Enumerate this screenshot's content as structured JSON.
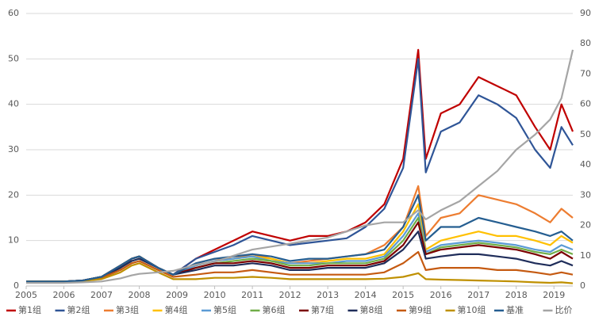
{
  "chart_data": {
    "type": "line",
    "x": [
      2005,
      2006,
      2006.5,
      2007,
      2007.5,
      2007.8,
      2008,
      2008.5,
      2008.9,
      2009.5,
      2010,
      2010.5,
      2011,
      2011.5,
      2012,
      2012.5,
      2013,
      2013.5,
      2014,
      2014.5,
      2015,
      2015.4,
      2015.6,
      2016,
      2016.5,
      2017,
      2017.5,
      2018,
      2018.5,
      2018.9,
      2019.2,
      2019.5
    ],
    "xlim": [
      2005,
      2019.5
    ],
    "xticks": [
      2005,
      2006,
      2007,
      2008,
      2009,
      2010,
      2011,
      2012,
      2013,
      2014,
      2015,
      2016,
      2017,
      2018,
      2019
    ],
    "ylim": [
      0,
      60
    ],
    "yticks": [
      0,
      10,
      20,
      30,
      40,
      50,
      60
    ],
    "y2lim": [
      0,
      90
    ],
    "y2ticks": [
      0,
      10,
      20,
      30,
      40,
      50,
      60,
      70,
      80,
      90
    ],
    "grid": true,
    "legend": "bottom",
    "series": [
      {
        "name": "第1组",
        "color": "#c00000",
        "values": [
          1,
          1,
          1.2,
          2,
          4,
          6,
          6.5,
          4,
          2.5,
          6,
          8,
          10,
          12,
          11,
          10,
          11,
          11,
          12,
          14,
          18,
          28,
          52,
          28,
          38,
          40,
          46,
          44,
          42,
          35,
          30,
          40,
          34
        ]
      },
      {
        "name": "第2组",
        "color": "#2f5597",
        "values": [
          1,
          1,
          1.2,
          2,
          4,
          6,
          6.5,
          4,
          2.5,
          6,
          7.5,
          9,
          11,
          10,
          9,
          9.5,
          10,
          10.5,
          13,
          17,
          26,
          50,
          25,
          34,
          36,
          42,
          40,
          37,
          30,
          26,
          35,
          31
        ]
      },
      {
        "name": "第3组",
        "color": "#ed7d31",
        "values": [
          1,
          1,
          1.2,
          2,
          4.5,
          6,
          6.5,
          4,
          2.5,
          5,
          6,
          6,
          7,
          6,
          5,
          5.5,
          6,
          6.5,
          7,
          9,
          13,
          22,
          11,
          15,
          16,
          20,
          19,
          18,
          16,
          14,
          17,
          15
        ]
      },
      {
        "name": "第4组",
        "color": "#ffc000",
        "values": [
          1,
          1,
          1.2,
          2,
          4.5,
          6,
          6.5,
          4,
          2.5,
          4.5,
          5.5,
          6,
          6.5,
          6,
          5,
          5,
          5.5,
          6,
          6,
          7,
          12,
          18,
          8,
          10,
          11,
          12,
          11,
          11,
          10,
          9,
          11,
          9.5
        ]
      },
      {
        "name": "第5组",
        "color": "#5b9bd5",
        "values": [
          1,
          1,
          1.2,
          2,
          4.5,
          6,
          6.5,
          4,
          2.5,
          4.5,
          5.5,
          6,
          6.5,
          5.5,
          5,
          5,
          5,
          5.5,
          5.5,
          6.5,
          11,
          16,
          7.5,
          9,
          9.5,
          10,
          9.5,
          9,
          8,
          7.5,
          9,
          8
        ]
      },
      {
        "name": "第6组",
        "color": "#70ad47",
        "values": [
          1,
          1,
          1.2,
          2,
          4.5,
          6,
          6.5,
          4,
          2.5,
          4,
          5,
          5.5,
          6,
          5.5,
          4.5,
          4.5,
          5,
          5,
          5,
          6,
          10,
          15,
          7,
          8.5,
          9,
          9.5,
          9,
          8.5,
          7.5,
          7,
          8,
          7
        ]
      },
      {
        "name": "第7组",
        "color": "#7b0000",
        "values": [
          1,
          1,
          1.2,
          2,
          4.5,
          6,
          6.5,
          4,
          2.5,
          4,
          5,
          5,
          5.5,
          5,
          4,
          4,
          4.5,
          4.5,
          4.5,
          5.5,
          9,
          14,
          7,
          8,
          8.5,
          9,
          8.5,
          8,
          7,
          6,
          7.5,
          6
        ]
      },
      {
        "name": "第8组",
        "color": "#1f2d5a",
        "values": [
          1,
          1,
          1.2,
          2,
          4,
          5.5,
          6,
          4,
          2.5,
          3.5,
          4.5,
          4.5,
          5,
          4.5,
          3.5,
          3.5,
          4,
          4,
          4,
          5,
          8,
          12,
          6,
          6.5,
          7,
          7,
          6.5,
          6,
          5,
          4.5,
          5.5,
          4.5
        ]
      },
      {
        "name": "第9组",
        "color": "#c55a11",
        "values": [
          1,
          1,
          1.1,
          1.8,
          3.5,
          5,
          5.5,
          3.5,
          2,
          2.5,
          3,
          3,
          3.5,
          3,
          2.5,
          2.5,
          2.5,
          2.5,
          2.5,
          3,
          5,
          7.5,
          3.5,
          4,
          4,
          4,
          3.5,
          3.5,
          3,
          2.5,
          3,
          2.5
        ]
      },
      {
        "name": "第10组",
        "color": "#bf9000",
        "values": [
          1,
          1,
          1.1,
          1.5,
          3,
          4.5,
          5,
          3,
          1.5,
          1.5,
          1.8,
          1.8,
          2,
          1.8,
          1.5,
          1.5,
          1.5,
          1.5,
          1.5,
          1.6,
          2,
          2.8,
          1.5,
          1.4,
          1.3,
          1.2,
          1.1,
          1,
          0.8,
          0.7,
          0.8,
          0.6
        ]
      },
      {
        "name": "基准",
        "color": "#255e91",
        "values": [
          1,
          1,
          1.2,
          2,
          4.5,
          6,
          6.5,
          4,
          2.5,
          5,
          6,
          6.5,
          7,
          6.5,
          5.5,
          6,
          6,
          6.5,
          7,
          8,
          13,
          20,
          10,
          13,
          13,
          15,
          14,
          13,
          12,
          11,
          12,
          10
        ]
      },
      {
        "name": "比价",
        "color": "#a5a5a5",
        "axis": "y2",
        "values": [
          1,
          1,
          1.2,
          1.5,
          2.5,
          3.5,
          4,
          4.5,
          5,
          7,
          8,
          10,
          12,
          13,
          14,
          15,
          16,
          18,
          20,
          21,
          21,
          25,
          22,
          25,
          28,
          33,
          38,
          45,
          50,
          55,
          62,
          78
        ]
      }
    ]
  }
}
